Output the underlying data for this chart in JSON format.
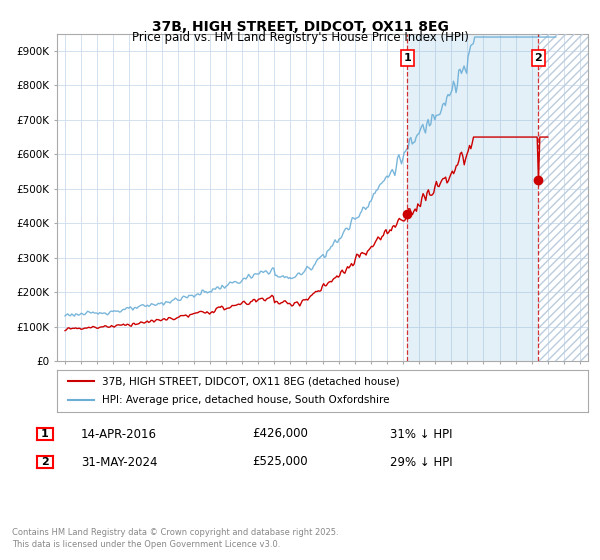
{
  "title": "37B, HIGH STREET, DIDCOT, OX11 8EG",
  "subtitle": "Price paid vs. HM Land Registry's House Price Index (HPI)",
  "ylabel_ticks": [
    "£0",
    "£100K",
    "£200K",
    "£300K",
    "£400K",
    "£500K",
    "£600K",
    "£700K",
    "£800K",
    "£900K"
  ],
  "ylim": [
    0,
    950000
  ],
  "xlim_start": 1994.5,
  "xlim_end": 2027.5,
  "hpi_color": "#6baed6",
  "hpi_fill_color": "#ddeef8",
  "price_color": "#cc0000",
  "marker1_x": 2016.28,
  "marker2_x": 2024.41,
  "marker1_y": 426000,
  "marker2_y": 525000,
  "marker1_date": "14-APR-2016",
  "marker1_price": "£426,000",
  "marker1_hpi": "31% ↓ HPI",
  "marker2_date": "31-MAY-2024",
  "marker2_price": "£525,000",
  "marker2_hpi": "29% ↓ HPI",
  "legend_red_label": "37B, HIGH STREET, DIDCOT, OX11 8EG (detached house)",
  "legend_blue_label": "HPI: Average price, detached house, South Oxfordshire",
  "footnote": "Contains HM Land Registry data © Crown copyright and database right 2025.\nThis data is licensed under the Open Government Licence v3.0.",
  "bg_color": "#ffffff",
  "grid_color": "#ccddee",
  "hatch_start": 2024.42,
  "hatch_end": 2027.5,
  "fill_start": 2016.28
}
